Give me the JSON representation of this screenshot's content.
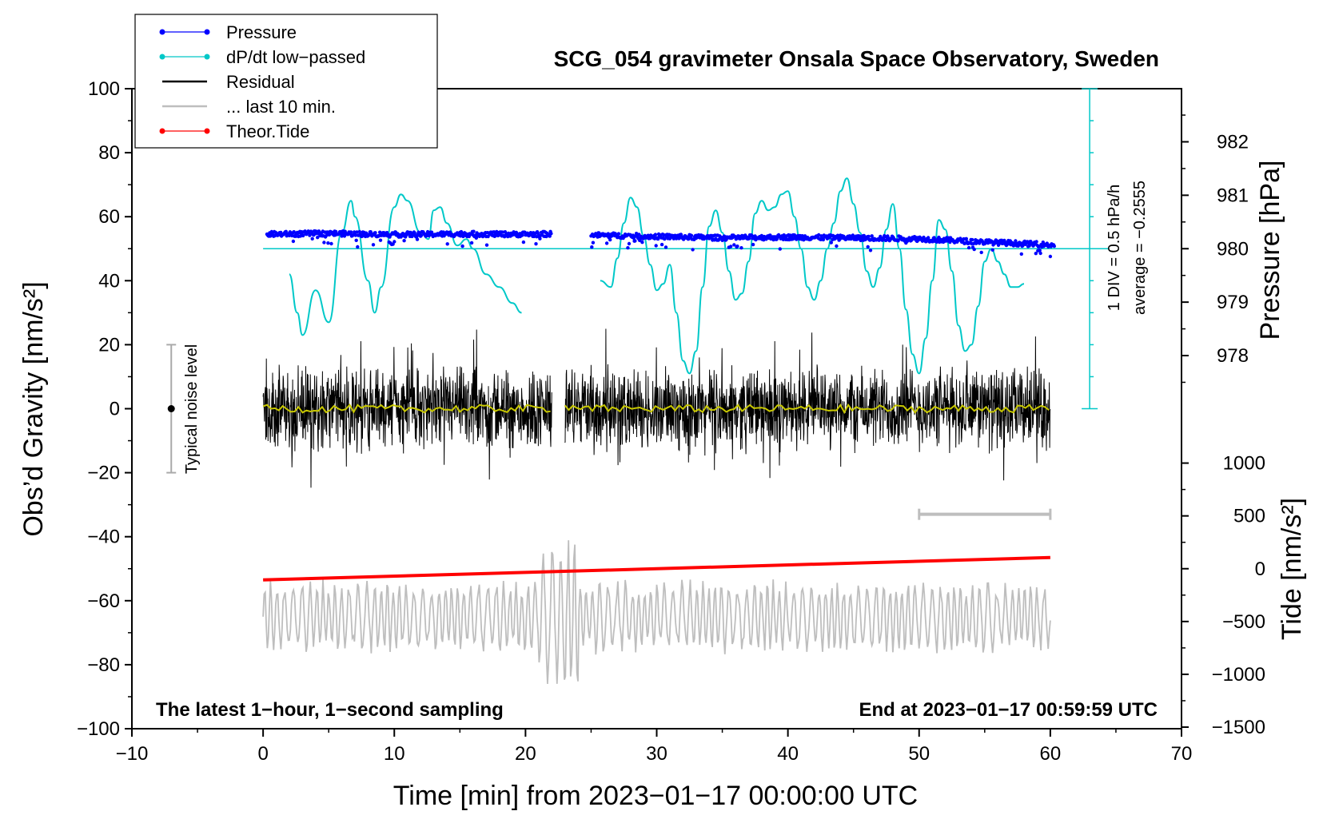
{
  "chart_data": {
    "type": "line",
    "title": "SCG_054 gravimeter Onsala Space Observatory, Sweden",
    "xlabel": "Time [min] from 2023−01−17 00:00:00 UTC",
    "ylabel_left": "Obs’d Gravity [nm/s²]",
    "ylabel_right_top": "Pressure [hPa]",
    "ylabel_right_bottom": "Tide [nm/s²]",
    "xlim": [
      -10,
      70
    ],
    "ylim_left": [
      -100,
      100
    ],
    "x_ticks": [
      "−10",
      "0",
      "10",
      "20",
      "30",
      "40",
      "50",
      "60",
      "70"
    ],
    "y_ticks_left": [
      "−100",
      "−80",
      "−60",
      "−40",
      "−20",
      "0",
      "20",
      "40",
      "60",
      "80",
      "100"
    ],
    "pressure_ticks": [
      "978",
      "979",
      "980",
      "981",
      "982"
    ],
    "tide_ticks": [
      "−1500",
      "−1000",
      "−500",
      "0",
      "500",
      "1000"
    ],
    "pressure_axis": {
      "value_at_gravity_50": 980,
      "hpa_per_16_7_nms2": 1
    },
    "tide_axis": {
      "gravity_ref": -50,
      "nms2_per_gravity_unit": 30.3
    },
    "bottom_left_note": "The latest 1−hour, 1−second sampling",
    "bottom_right_note": "End at 2023−01−17 00:59:59 UTC",
    "scale_note_1": "1 DIV = 0.5 hPa/h",
    "scale_note_2": "average = −0.2555",
    "noise_label": "Typical noise level",
    "noise_bar": {
      "x": -7,
      "y_low": -20,
      "y_high": 20
    },
    "last10_bar": {
      "x_start": 50,
      "x_end": 60,
      "y": -33
    },
    "legend": [
      {
        "label": "Pressure",
        "color": "#0000ff",
        "marker": true
      },
      {
        "label": "dP/dt low−passed",
        "color": "#00c8c8",
        "marker": true
      },
      {
        "label": "Residual",
        "color": "#000000",
        "marker": false
      },
      {
        "label": "... last 10 min.",
        "color": "#bebebe",
        "marker": false
      },
      {
        "label": "Theor.Tide",
        "color": "#ff0000",
        "marker": true
      }
    ],
    "series": [
      {
        "name": "Pressure",
        "color": "#0000ff",
        "gap_minutes": [
          22,
          23
        ],
        "x": [
          0,
          5,
          10,
          15,
          20,
          22,
          23,
          25,
          30,
          35,
          40,
          45,
          50,
          55,
          60
        ],
        "values_gravity_units": [
          54.5,
          54.8,
          54.4,
          54.6,
          54.5,
          54.6,
          null,
          54.3,
          53.8,
          53.4,
          53.6,
          53.4,
          53.1,
          52.1,
          51.2
        ]
      },
      {
        "name": "dP/dt low−passed",
        "color": "#00c8c8",
        "reference_level": 50,
        "x": [
          2,
          2.6,
          3,
          4,
          5,
          6,
          6.7,
          7,
          8,
          8.5,
          9,
          10,
          10.5,
          11,
          12,
          12.6,
          13,
          13.5,
          14,
          14.8,
          15.5,
          16,
          17,
          18,
          19,
          19.7,
          25.7,
          26.5,
          27,
          27.5,
          28,
          28.5,
          29,
          29.5,
          30,
          30.5,
          31,
          31.5,
          32,
          32.5,
          33,
          33.5,
          34,
          34.5,
          35,
          35.5,
          36,
          36.5,
          37,
          37.5,
          38,
          38.5,
          39,
          39.5,
          40,
          40.5,
          41,
          41.5,
          42,
          42.5,
          43,
          43.5,
          44,
          44.5,
          45,
          45.5,
          46,
          46.5,
          47,
          47.5,
          48,
          48.5,
          49,
          49.5,
          50,
          50.5,
          51,
          51.5,
          52,
          52.5,
          53,
          53.5,
          54,
          54.5,
          55,
          55.5,
          56,
          56.5,
          57,
          57.5,
          58
        ],
        "values": [
          42,
          30,
          23,
          37,
          27,
          55,
          65,
          60,
          40,
          30,
          38,
          63,
          67,
          65,
          55,
          53,
          62,
          63,
          58,
          51,
          53,
          50,
          42,
          38,
          33,
          30,
          40,
          38,
          47,
          58,
          66,
          63,
          54,
          45,
          37,
          39,
          45,
          30,
          15,
          11,
          18,
          38,
          57,
          62,
          55,
          43,
          34,
          36,
          46,
          61,
          65,
          62,
          63,
          67,
          68,
          60,
          50,
          38,
          34,
          40,
          50,
          58,
          68,
          72,
          64,
          55,
          43,
          38,
          44,
          56,
          64,
          50,
          31,
          17,
          11,
          22,
          40,
          59,
          56,
          43,
          26,
          18,
          20,
          32,
          46,
          50,
          46,
          42,
          38,
          38,
          39
        ]
      },
      {
        "name": "Residual",
        "color": "#000000",
        "x_range": [
          0,
          60
        ],
        "gap_minutes": [
          22,
          23
        ],
        "typical_amplitude": 10,
        "peak_max": 26,
        "peak_min": -25,
        "smoothed_color": "#c8c800",
        "smoothed_level": 0
      },
      {
        "name": "... last 10 min.",
        "color": "#bebebe",
        "x_range": [
          0,
          60
        ],
        "center": -65,
        "typical_amplitude": 10,
        "peak_max": -34,
        "peak_min": -86
      },
      {
        "name": "Theor.Tide",
        "color": "#ff0000",
        "x": [
          0,
          60
        ],
        "values_gravity_units": [
          -53.5,
          -46.5
        ]
      }
    ]
  }
}
